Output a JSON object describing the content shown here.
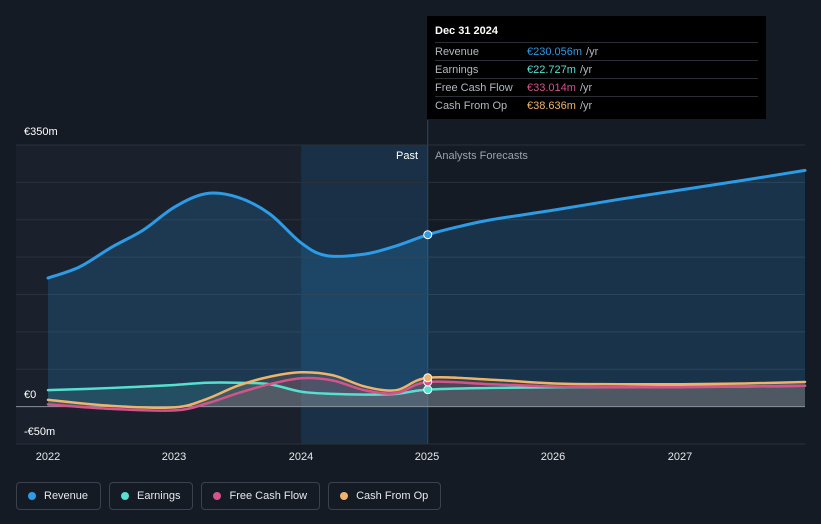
{
  "colors": {
    "revenue": "#2d9be5",
    "earnings": "#56e0cf",
    "fcf": "#d5538b",
    "cfo": "#f0b36b",
    "background": "#151b24"
  },
  "tooltip": {
    "date": "Dec 31 2024",
    "rows": [
      {
        "name": "Revenue",
        "value": "€230.056m",
        "unit": "/yr",
        "color": "#2d9be5"
      },
      {
        "name": "Earnings",
        "value": "€22.727m",
        "unit": "/yr",
        "color": "#56e0cf"
      },
      {
        "name": "Free Cash Flow",
        "value": "€33.014m",
        "unit": "/yr",
        "color": "#d5538b"
      },
      {
        "name": "Cash From Op",
        "value": "€38.636m",
        "unit": "/yr",
        "color": "#f0b36b"
      }
    ]
  },
  "legend": [
    {
      "label": "Revenue",
      "color": "#2d9be5"
    },
    {
      "label": "Earnings",
      "color": "#56e0cf"
    },
    {
      "label": "Free Cash Flow",
      "color": "#d5538b"
    },
    {
      "label": "Cash From Op",
      "color": "#f0b36b"
    }
  ],
  "chart_data": {
    "type": "area",
    "title": "",
    "xlabel": "",
    "ylabel": "",
    "y_unit": "€m",
    "y_tick_labels": [
      {
        "value": 350,
        "label": "€350m"
      },
      {
        "value": 0,
        "label": "€0"
      },
      {
        "value": -50,
        "label": "-€50m"
      }
    ],
    "x_tick_labels": [
      "2022",
      "2023",
      "2024",
      "2025",
      "2026",
      "2027"
    ],
    "ylim": [
      -50,
      350
    ],
    "xlim": [
      2022.0,
      2027.98
    ],
    "gridlines": true,
    "region_labels": {
      "past": "Past",
      "forecast": "Analysts Forecasts"
    },
    "past_end": 2025.0,
    "highlight_band": [
      2024.0,
      2025.0
    ],
    "marker_x": 2025.0,
    "series": [
      {
        "name": "Revenue",
        "color": "#2d9be5",
        "x": [
          2022.0,
          2022.25,
          2022.5,
          2022.75,
          2023.0,
          2023.25,
          2023.5,
          2023.75,
          2024.0,
          2024.2,
          2024.5,
          2024.75,
          2025.0,
          2025.25,
          2025.5,
          2026.0,
          2026.5,
          2027.0,
          2027.5,
          2027.98
        ],
        "y": [
          172,
          187,
          213,
          236,
          267,
          285,
          280,
          258,
          219,
          202,
          204,
          215,
          230,
          241,
          250,
          263,
          277,
          290,
          303,
          316
        ]
      },
      {
        "name": "Earnings",
        "color": "#56e0cf",
        "x": [
          2022.0,
          2022.5,
          2023.0,
          2023.25,
          2023.5,
          2023.75,
          2024.0,
          2024.25,
          2024.5,
          2024.75,
          2025.0,
          2025.5,
          2026.0,
          2026.5,
          2027.0,
          2027.5,
          2027.98
        ],
        "y": [
          22,
          25,
          29,
          32,
          32,
          30,
          20,
          17,
          16,
          17,
          22.7,
          25,
          26,
          26,
          27,
          27,
          28
        ]
      },
      {
        "name": "Free Cash Flow",
        "color": "#d5538b",
        "x": [
          2022.0,
          2022.5,
          2023.0,
          2023.25,
          2023.5,
          2023.75,
          2024.0,
          2024.25,
          2024.5,
          2024.75,
          2025.0,
          2025.5,
          2026.0,
          2026.5,
          2027.0,
          2027.5,
          2027.98
        ],
        "y": [
          3,
          -3,
          -5,
          4,
          18,
          30,
          38,
          35,
          22,
          18,
          33,
          30,
          27,
          26,
          26,
          27,
          28
        ]
      },
      {
        "name": "Cash From Op",
        "color": "#f0b36b",
        "x": [
          2022.0,
          2022.5,
          2023.0,
          2023.25,
          2023.5,
          2023.75,
          2024.0,
          2024.25,
          2024.5,
          2024.75,
          2025.0,
          2025.5,
          2026.0,
          2026.5,
          2027.0,
          2027.5,
          2027.98
        ],
        "y": [
          9,
          1,
          -1,
          10,
          28,
          40,
          46,
          42,
          27,
          22,
          38.6,
          36,
          31,
          30,
          30,
          31,
          33
        ]
      }
    ]
  }
}
